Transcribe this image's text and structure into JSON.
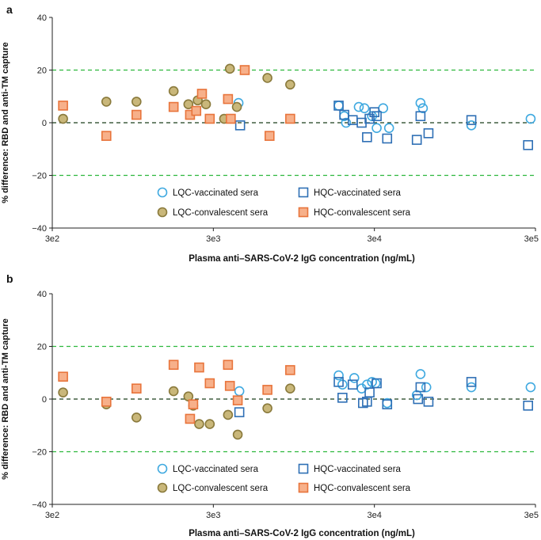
{
  "chart_data": [
    {
      "type": "scatter",
      "panel_label": "a",
      "title": "",
      "xlabel": "Plasma anti–SARS-CoV-2 IgG concentration (ng/mL)",
      "ylabel": "% difference: RBD and anti-TM capture",
      "xscale": "log",
      "xlim": [
        300,
        300000
      ],
      "ylim": [
        -40,
        40
      ],
      "xtick_labels": [
        "3e2",
        "3e3",
        "3e4",
        "3e5"
      ],
      "xtick_values": [
        300,
        3000,
        30000,
        300000
      ],
      "ytick_values": [
        -40,
        -20,
        0,
        20,
        40
      ],
      "ytick_labels": [
        "−40",
        "−20",
        "0",
        "20",
        "40"
      ],
      "reference_lines": [
        {
          "y": 20,
          "color": "#2db83d",
          "style": "dashed"
        },
        {
          "y": -20,
          "color": "#2db83d",
          "style": "dashed"
        },
        {
          "y": 0,
          "color": "#1a3d1a",
          "style": "dashed"
        }
      ],
      "legend_position": "bottom-center",
      "series": [
        {
          "name": "LQC-vaccinated sera",
          "marker": "circle",
          "color": "#3fa9e0",
          "fill": "none",
          "x": [
            4300,
            18000,
            19500,
            20000,
            24000,
            26000,
            29000,
            31000,
            34000,
            37000,
            58000,
            60000,
            120000,
            280000
          ],
          "y": [
            7.5,
            6.5,
            2.5,
            0,
            6,
            5.5,
            2.5,
            -2,
            5.5,
            -2,
            7.5,
            5.5,
            -1,
            1.5
          ]
        },
        {
          "name": "LQC-convalescent sera",
          "marker": "circle",
          "color": "#8a7a3c",
          "fill": "#c9b77a",
          "x": [
            350,
            650,
            1000,
            1700,
            2100,
            2400,
            2700,
            3500,
            3800,
            4200,
            6500,
            9000
          ],
          "y": [
            1.5,
            8,
            8,
            12,
            7,
            8.5,
            7,
            1.5,
            20.5,
            6,
            17,
            14.5
          ]
        },
        {
          "name": "HQC-vaccinated sera",
          "marker": "square",
          "color": "#2e6fb5",
          "fill": "none",
          "x": [
            4400,
            18000,
            19500,
            22000,
            25000,
            27000,
            28000,
            30000,
            31000,
            36000,
            55000,
            58000,
            65000,
            120000,
            270000
          ],
          "y": [
            -1,
            6.5,
            3,
            1,
            0,
            -5.5,
            1.5,
            4,
            2.5,
            -6,
            -6.5,
            2.5,
            -4,
            1,
            -8.5
          ]
        },
        {
          "name": "HQC-convalescent sera",
          "marker": "square",
          "color": "#e8743b",
          "fill": "#f7b08a",
          "x": [
            350,
            650,
            1000,
            1700,
            2150,
            2350,
            2550,
            2850,
            3700,
            3850,
            4700,
            6700,
            9000
          ],
          "y": [
            6.5,
            -5,
            3,
            6,
            3,
            4.5,
            11,
            1.5,
            9,
            1.5,
            20,
            -5,
            1.5
          ]
        }
      ]
    },
    {
      "type": "scatter",
      "panel_label": "b",
      "title": "",
      "xlabel": "Plasma anti–SARS-CoV-2 IgG concentration (ng/mL)",
      "ylabel": "% difference: RBD and anti-TM capture",
      "xscale": "log",
      "xlim": [
        300,
        300000
      ],
      "ylim": [
        -40,
        40
      ],
      "xtick_labels": [
        "3e2",
        "3e3",
        "3e4",
        "3e5"
      ],
      "xtick_values": [
        300,
        3000,
        30000,
        300000
      ],
      "ytick_values": [
        -40,
        -20,
        0,
        20,
        40
      ],
      "ytick_labels": [
        "−40",
        "−20",
        "0",
        "20",
        "40"
      ],
      "reference_lines": [
        {
          "y": 20,
          "color": "#2db83d",
          "style": "dashed"
        },
        {
          "y": -20,
          "color": "#2db83d",
          "style": "dashed"
        },
        {
          "y": 0,
          "color": "#1a3d1a",
          "style": "dashed"
        }
      ],
      "legend_position": "bottom-center",
      "series": [
        {
          "name": "LQC-vaccinated sera",
          "marker": "circle",
          "color": "#3fa9e0",
          "fill": "none",
          "x": [
            4350,
            18000,
            19000,
            22500,
            25000,
            27000,
            29000,
            30500,
            36000,
            55000,
            58000,
            63000,
            120000,
            280000
          ],
          "y": [
            3,
            9,
            5.5,
            8,
            4,
            5.5,
            6.5,
            6,
            -1.5,
            1.5,
            9.5,
            4.5,
            4.5,
            4.5
          ]
        },
        {
          "name": "LQC-convalescent sera",
          "marker": "circle",
          "color": "#8a7a3c",
          "fill": "#c9b77a",
          "x": [
            350,
            650,
            1000,
            1700,
            2100,
            2250,
            2450,
            2850,
            3700,
            4250,
            6500,
            9000
          ],
          "y": [
            2.5,
            -2,
            -7,
            3,
            1,
            -2.5,
            -9.5,
            -9.5,
            -6,
            -13.5,
            -3.5,
            4
          ]
        },
        {
          "name": "HQC-vaccinated sera",
          "marker": "square",
          "color": "#2e6fb5",
          "fill": "none",
          "x": [
            4350,
            18000,
            19000,
            22000,
            25500,
            27000,
            28000,
            31000,
            36000,
            56000,
            58000,
            65000,
            120000,
            270000
          ],
          "y": [
            -5,
            6.5,
            0.5,
            5.5,
            -1.5,
            -1,
            2.5,
            6,
            -2,
            0,
            4.5,
            -1,
            6.5,
            -2.5
          ]
        },
        {
          "name": "HQC-convalescent sera",
          "marker": "square",
          "color": "#e8743b",
          "fill": "#f7b08a",
          "x": [
            350,
            650,
            1000,
            1700,
            2150,
            2250,
            2450,
            2850,
            3700,
            3800,
            4250,
            6500,
            9000
          ],
          "y": [
            8.5,
            -1,
            4,
            13,
            -7.5,
            -2,
            12,
            6,
            13,
            5,
            -0.5,
            3.5,
            11
          ]
        }
      ]
    }
  ]
}
